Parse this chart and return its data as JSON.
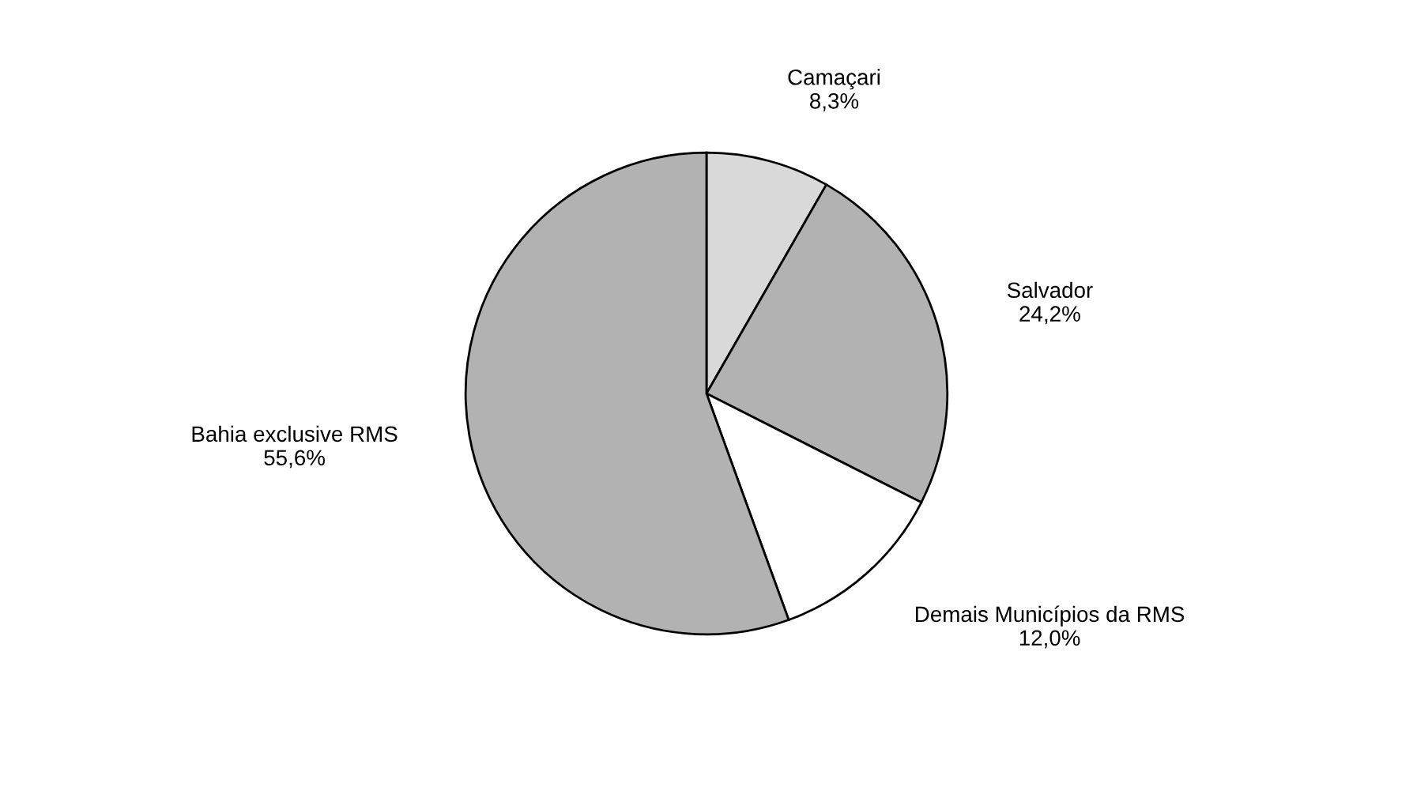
{
  "chart_data": {
    "type": "pie",
    "categories": [
      "Camaçari",
      "Salvador",
      "Demais Municípios da RMS",
      "Bahia exclusive RMS"
    ],
    "values": [
      8.3,
      24.2,
      12.0,
      55.6
    ],
    "value_labels": [
      "8,3%",
      "24,2%",
      "12,0%",
      "55,6%"
    ],
    "colors": [
      "#d9d9d9",
      "#b2b2b2",
      "#ffffff",
      "#b2b2b2"
    ]
  }
}
